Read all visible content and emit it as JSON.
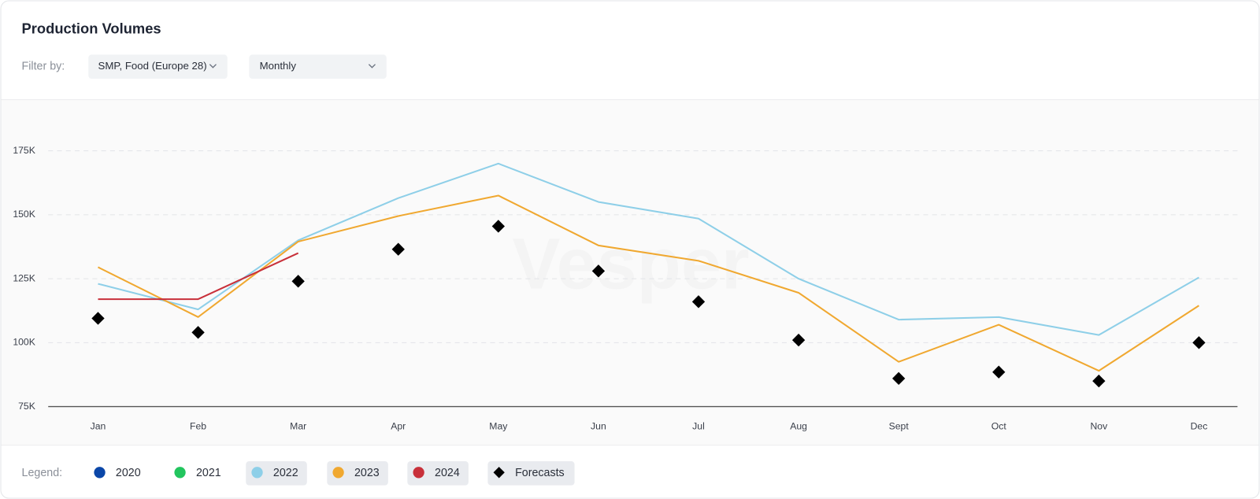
{
  "header": {
    "title": "Production Volumes",
    "filter_label": "Filter by:",
    "filters": [
      "SMP, Food (Europe 28)",
      "Monthly"
    ]
  },
  "chart_data": {
    "type": "line",
    "categories": [
      "Jan",
      "Feb",
      "Mar",
      "Apr",
      "May",
      "Jun",
      "Jul",
      "Aug",
      "Sept",
      "Oct",
      "Nov",
      "Dec"
    ],
    "ylim": [
      75000,
      195000
    ],
    "yticks": [
      {
        "value": 75000,
        "label": "75K"
      },
      {
        "value": 100000,
        "label": "100K"
      },
      {
        "value": 125000,
        "label": "125K"
      },
      {
        "value": 150000,
        "label": "150K"
      },
      {
        "value": 175000,
        "label": "175K"
      }
    ],
    "grid": true,
    "watermark": "Vesper",
    "legend_label": "Legend:",
    "series": [
      {
        "name": "2020",
        "color": "#0b47a8",
        "visible": false,
        "marker": "line",
        "values": [
          null,
          null,
          null,
          null,
          null,
          null,
          null,
          null,
          null,
          null,
          null,
          null
        ]
      },
      {
        "name": "2021",
        "color": "#22c55e",
        "visible": false,
        "marker": "line",
        "values": [
          null,
          null,
          null,
          null,
          null,
          null,
          null,
          null,
          null,
          null,
          null,
          null
        ]
      },
      {
        "name": "2022",
        "color": "#8ecfe8",
        "visible": true,
        "marker": "line",
        "values": [
          123000,
          113000,
          140000,
          156500,
          170000,
          155000,
          148500,
          125000,
          109000,
          110000,
          103000,
          125500
        ]
      },
      {
        "name": "2023",
        "color": "#f0a830",
        "visible": true,
        "marker": "line",
        "values": [
          129500,
          110000,
          139500,
          149500,
          157500,
          138000,
          132000,
          119500,
          92500,
          107000,
          89000,
          114500
        ]
      },
      {
        "name": "2024",
        "color": "#c8303a",
        "visible": true,
        "marker": "line",
        "values": [
          117000,
          117000,
          135000,
          null,
          null,
          null,
          null,
          null,
          null,
          null,
          null,
          null
        ]
      },
      {
        "name": "Forecasts",
        "color": "#000000",
        "visible": true,
        "marker": "diamond",
        "values": [
          109500,
          104000,
          124000,
          136500,
          145500,
          128000,
          116000,
          101000,
          86000,
          88500,
          85000,
          100000
        ]
      }
    ]
  }
}
